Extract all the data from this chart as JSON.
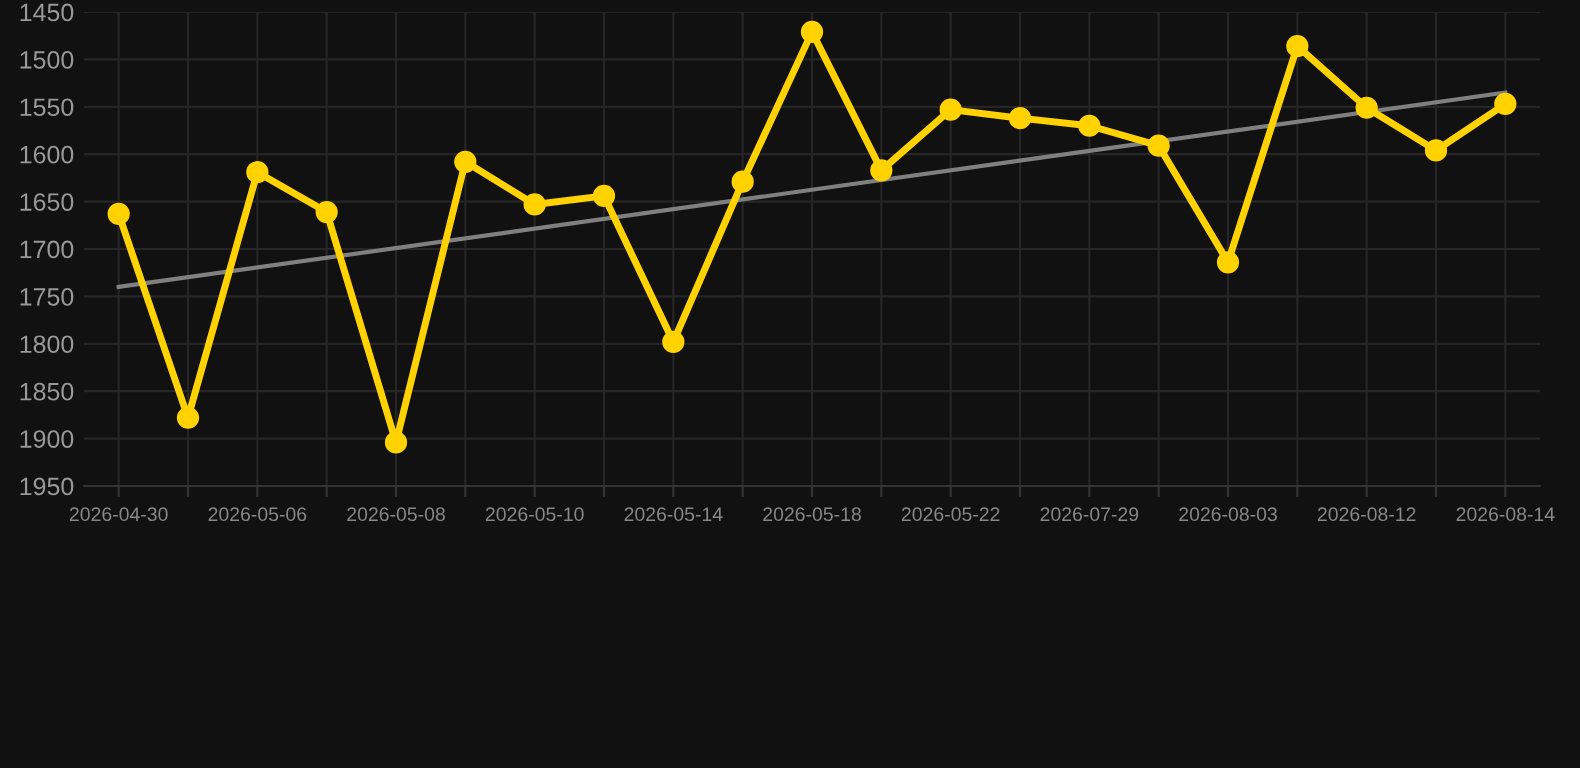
{
  "chart_data": {
    "type": "line",
    "categories": [
      "2026-04-30",
      null,
      "2026-05-06",
      null,
      "2026-05-08",
      null,
      "2026-05-10",
      null,
      "2026-05-14",
      null,
      "2026-05-18",
      null,
      "2026-05-22",
      null,
      "2026-07-29",
      null,
      "2026-08-03",
      null,
      "2026-08-12",
      null,
      "2026-08-14"
    ],
    "series": [
      {
        "color": "#ffd200",
        "values": [
          1663,
          1878,
          1619,
          1661,
          1904,
          1608,
          1653,
          1644,
          1798,
          1629,
          1471,
          1617,
          1553,
          1562,
          1570,
          1591,
          1714,
          1486,
          1551,
          1596,
          1547
        ],
        "marker": "circle"
      },
      {
        "type": "line",
        "color": "#808080",
        "values": [
          1740,
          null,
          null,
          null,
          null,
          null,
          null,
          null,
          null,
          null,
          null,
          null,
          null,
          null,
          null,
          null,
          null,
          null,
          null,
          null,
          1535
        ],
        "marker": "none"
      }
    ],
    "ylim": [
      1950,
      1450
    ],
    "yticks": [
      1450,
      1500,
      1550,
      1600,
      1650,
      1700,
      1750,
      1800,
      1850,
      1900,
      1950
    ],
    "grid": true,
    "line_style": "solid"
  }
}
